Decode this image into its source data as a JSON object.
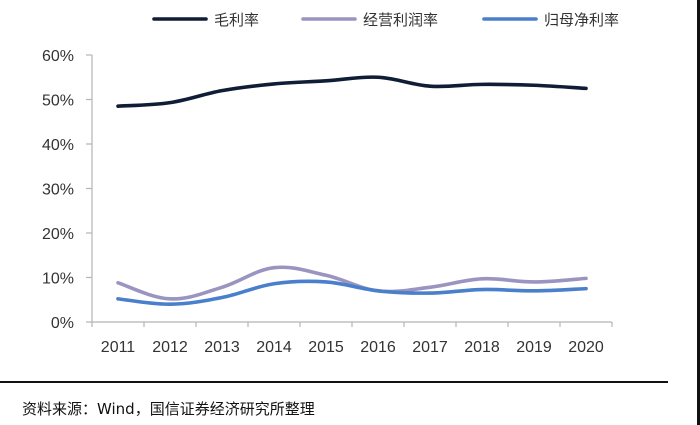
{
  "chart_data": {
    "type": "line",
    "title": "",
    "xlabel": "",
    "ylabel": "",
    "categories": [
      "2011",
      "2012",
      "2013",
      "2014",
      "2015",
      "2016",
      "2017",
      "2018",
      "2019",
      "2020"
    ],
    "ylim": [
      0,
      60
    ],
    "yticks": [
      "0%",
      "10%",
      "20%",
      "30%",
      "40%",
      "50%",
      "60%"
    ],
    "grid": false,
    "legend_position": "top",
    "series": [
      {
        "name": "毛利率",
        "color": "#0f1e36",
        "values": [
          48.5,
          49.3,
          52.0,
          53.5,
          54.2,
          55.0,
          53.0,
          53.4,
          53.2,
          52.5
        ]
      },
      {
        "name": "经营利润率",
        "color": "#9a94c0",
        "values": [
          8.8,
          5.2,
          7.8,
          12.2,
          10.5,
          7.0,
          7.8,
          9.7,
          9.0,
          9.8
        ]
      },
      {
        "name": "归母净利率",
        "color": "#4a7fcc",
        "values": [
          5.2,
          4.0,
          5.5,
          8.6,
          9.0,
          7.0,
          6.5,
          7.3,
          7.0,
          7.5
        ]
      }
    ]
  },
  "legend": {
    "items": [
      {
        "label": "毛利率",
        "color": "#0f1e36"
      },
      {
        "label": "经营利润率",
        "color": "#9a94c0"
      },
      {
        "label": "归母净利率",
        "color": "#4a7fcc"
      }
    ]
  },
  "footer": {
    "source": "资料来源：Wind，国信证券经济研究所整理"
  }
}
